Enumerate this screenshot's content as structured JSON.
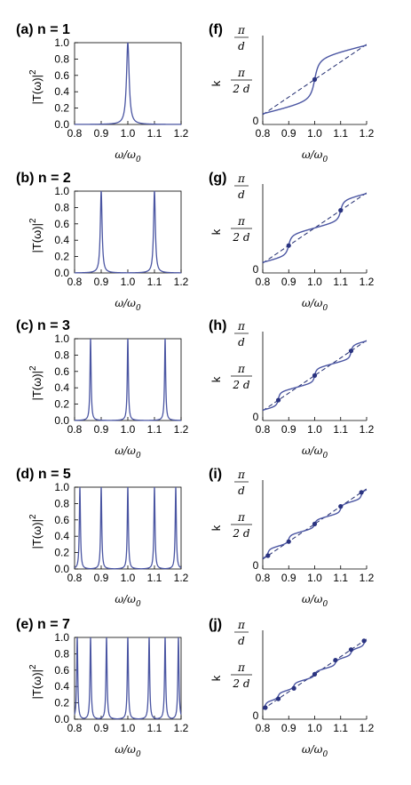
{
  "x_axis_label_main": "ω/ω",
  "x_axis_label_sub": "0",
  "left_y_label": "|T(ω)|",
  "left_y_label_sup": "2",
  "right_y_label": "k",
  "right_y_ticks": {
    "pi": "π",
    "d": "d",
    "two_d": "2 d",
    "zero": "0"
  },
  "colors": {
    "curve": "#4a55a2",
    "dashed": "#1f2a6e",
    "point": "#2a3380",
    "axis": "#000000"
  },
  "chart_data": [
    {
      "type": "line",
      "label": "(a) n = 1",
      "n": 1,
      "resonances": [
        1.0
      ],
      "xlim": [
        0.8,
        1.2
      ],
      "ylim": [
        0.0,
        1.0
      ],
      "xticks": [
        "0.8",
        "0.9",
        "1.0",
        "1.1",
        "1.2"
      ],
      "yticks": [
        "0.0",
        "0.2",
        "0.4",
        "0.6",
        "0.8",
        "1.0"
      ]
    },
    {
      "type": "line",
      "label": "(b) n = 2",
      "n": 2,
      "resonances": [
        0.9,
        1.1
      ],
      "xlim": [
        0.8,
        1.2
      ],
      "ylim": [
        0.0,
        1.0
      ],
      "xticks": [
        "0.8",
        "0.9",
        "1.0",
        "1.1",
        "1.2"
      ],
      "yticks": [
        "0.0",
        "0.2",
        "0.4",
        "0.6",
        "0.8",
        "1.0"
      ]
    },
    {
      "type": "line",
      "label": "(c) n = 3",
      "n": 3,
      "resonances": [
        0.86,
        1.0,
        1.14
      ],
      "xlim": [
        0.8,
        1.2
      ],
      "ylim": [
        0.0,
        1.0
      ],
      "xticks": [
        "0.8",
        "0.9",
        "1.0",
        "1.1",
        "1.2"
      ],
      "yticks": [
        "0.0",
        "0.2",
        "0.4",
        "0.6",
        "0.8",
        "1.0"
      ]
    },
    {
      "type": "line",
      "label": "(d) n = 5",
      "n": 5,
      "resonances": [
        0.82,
        0.9,
        1.0,
        1.1,
        1.18
      ],
      "xlim": [
        0.8,
        1.2
      ],
      "ylim": [
        0.0,
        1.0
      ],
      "xticks": [
        "0.8",
        "0.9",
        "1.0",
        "1.1",
        "1.2"
      ],
      "yticks": [
        "0.0",
        "0.2",
        "0.4",
        "0.6",
        "0.8",
        "1.0"
      ]
    },
    {
      "type": "line",
      "label": "(e) n = 7",
      "n": 7,
      "resonances": [
        0.81,
        0.86,
        0.92,
        1.0,
        1.08,
        1.14,
        1.19
      ],
      "xlim": [
        0.8,
        1.2
      ],
      "ylim": [
        0.0,
        1.0
      ],
      "xticks": [
        "0.8",
        "0.9",
        "1.0",
        "1.1",
        "1.2"
      ],
      "yticks": [
        "0.0",
        "0.2",
        "0.4",
        "0.6",
        "0.8",
        "1.0"
      ]
    },
    {
      "type": "line",
      "label": "(f)",
      "n": 1,
      "resonances": [
        1.0
      ],
      "xlim": [
        0.8,
        1.2
      ],
      "ylim": [
        0,
        1
      ],
      "xticks": [
        "0.8",
        "0.9",
        "1.0",
        "1.1",
        "1.2"
      ],
      "series": [
        {
          "style": "solid"
        },
        {
          "style": "dashed"
        }
      ]
    },
    {
      "type": "line",
      "label": "(g)",
      "n": 2,
      "resonances": [
        0.9,
        1.1
      ],
      "xlim": [
        0.8,
        1.2
      ],
      "ylim": [
        0,
        1
      ],
      "xticks": [
        "0.8",
        "0.9",
        "1.0",
        "1.1",
        "1.2"
      ],
      "series": [
        {
          "style": "solid"
        },
        {
          "style": "dashed"
        }
      ]
    },
    {
      "type": "line",
      "label": "(h)",
      "n": 3,
      "resonances": [
        0.86,
        1.0,
        1.14
      ],
      "xlim": [
        0.8,
        1.2
      ],
      "ylim": [
        0,
        1
      ],
      "xticks": [
        "0.8",
        "0.9",
        "1.0",
        "1.1",
        "1.2"
      ],
      "series": [
        {
          "style": "solid"
        },
        {
          "style": "dashed"
        }
      ]
    },
    {
      "type": "line",
      "label": "(i)",
      "n": 5,
      "resonances": [
        0.82,
        0.9,
        1.0,
        1.1,
        1.18
      ],
      "xlim": [
        0.8,
        1.2
      ],
      "ylim": [
        0,
        1
      ],
      "xticks": [
        "0.8",
        "0.9",
        "1.0",
        "1.1",
        "1.2"
      ],
      "series": [
        {
          "style": "solid"
        },
        {
          "style": "dashed"
        }
      ]
    },
    {
      "type": "line",
      "label": "(j)",
      "n": 7,
      "resonances": [
        0.81,
        0.86,
        0.92,
        1.0,
        1.08,
        1.14,
        1.19
      ],
      "xlim": [
        0.8,
        1.2
      ],
      "ylim": [
        0,
        1
      ],
      "xticks": [
        "0.8",
        "0.9",
        "1.0",
        "1.1",
        "1.2"
      ],
      "series": [
        {
          "style": "solid"
        },
        {
          "style": "dashed"
        }
      ]
    }
  ]
}
